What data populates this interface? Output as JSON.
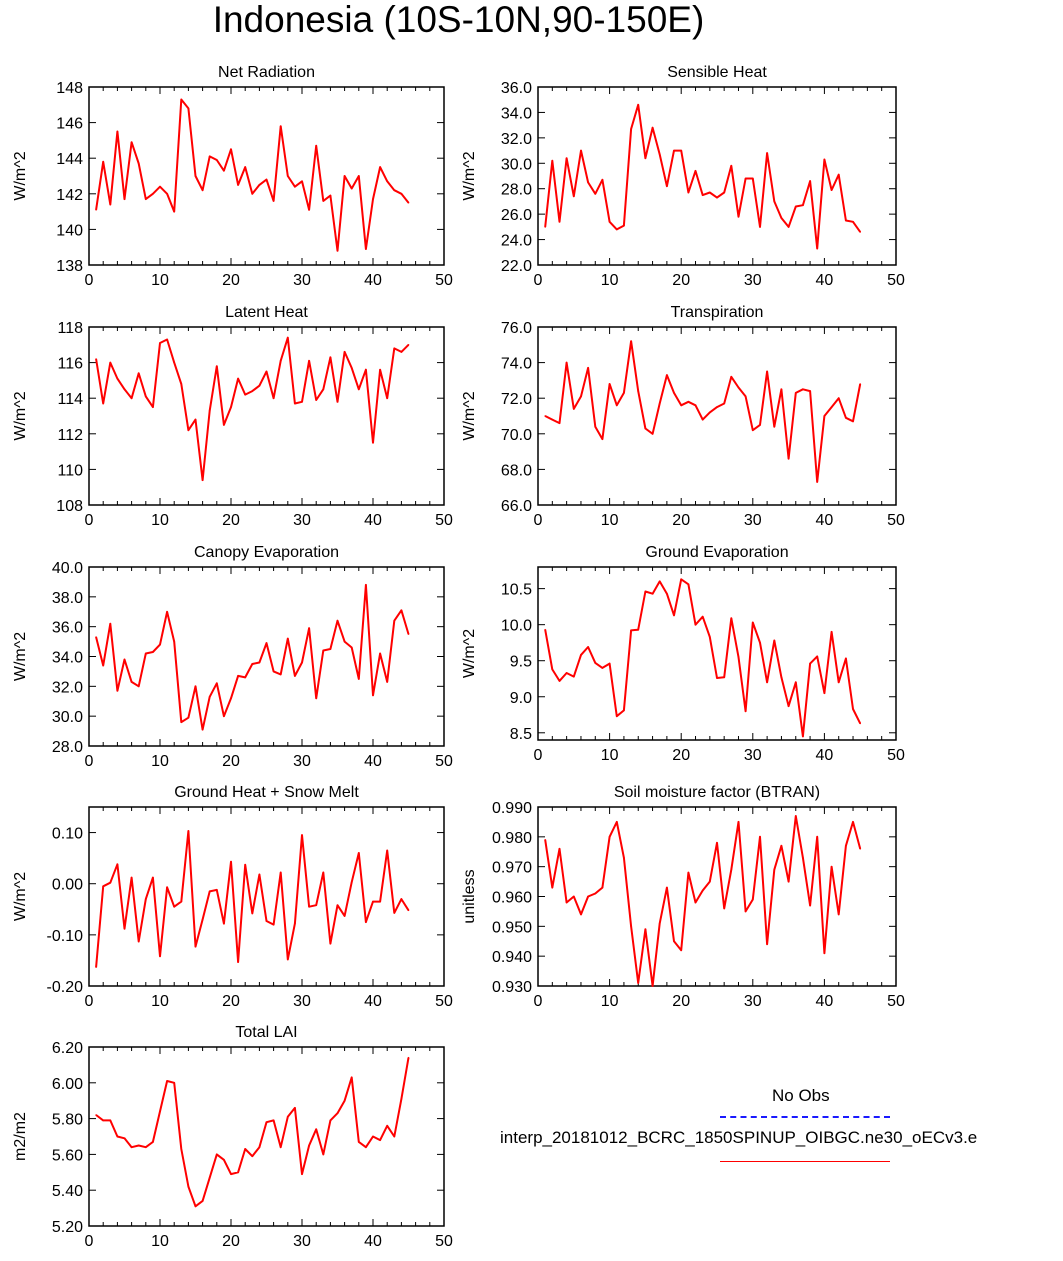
{
  "title": "Indonesia (10S-10N,90-150E)",
  "colors": {
    "line": "#ff0000",
    "obs": "#1a1aff",
    "axis": "#000000"
  },
  "legend": {
    "obs_label": "No Obs",
    "case_label": "interp_20181012_BCRC_1850SPINUP_OIBGC.ne30_oECv3.e"
  },
  "chart_data": [
    {
      "type": "line",
      "title": "Net Radiation",
      "ylabel": "W/m^2",
      "xlabel": "",
      "xlim": [
        0,
        50
      ],
      "ylim": [
        138,
        148
      ],
      "grid": false,
      "xticks": [
        "0",
        "10",
        "20",
        "30",
        "40",
        "50"
      ],
      "yticks": [
        "138",
        "140",
        "142",
        "144",
        "146",
        "148"
      ],
      "series": [
        {
          "x": [
            1,
            2,
            3,
            4,
            5,
            6,
            7,
            8,
            9,
            10,
            11,
            12,
            13,
            14,
            15,
            16,
            17,
            18,
            19,
            20,
            21,
            22,
            23,
            24,
            25,
            26,
            27,
            28,
            29,
            30,
            31,
            32,
            33,
            34,
            35,
            36,
            37,
            38,
            39,
            40,
            41,
            42,
            43,
            44,
            45
          ],
          "values": [
            141.1,
            143.8,
            141.4,
            145.5,
            141.7,
            144.9,
            143.7,
            141.7,
            142.0,
            142.4,
            142.0,
            141.0,
            147.3,
            146.8,
            143.0,
            142.2,
            144.1,
            143.9,
            143.3,
            144.5,
            142.5,
            143.5,
            142.0,
            142.5,
            142.8,
            141.6,
            145.8,
            143.0,
            142.4,
            142.7,
            141.1,
            144.7,
            141.6,
            141.9,
            138.8,
            143.0,
            142.3,
            143.0,
            138.9,
            141.7,
            143.5,
            142.7,
            142.2,
            142.0,
            141.5
          ]
        }
      ]
    },
    {
      "type": "line",
      "title": "Sensible Heat",
      "ylabel": "W/m^2",
      "xlabel": "",
      "xlim": [
        0,
        50
      ],
      "ylim": [
        22.0,
        36.0
      ],
      "grid": false,
      "xticks": [
        "0",
        "10",
        "20",
        "30",
        "40",
        "50"
      ],
      "yticks": [
        "22.0",
        "24.0",
        "26.0",
        "28.0",
        "30.0",
        "32.0",
        "34.0",
        "36.0"
      ],
      "series": [
        {
          "x": [
            1,
            2,
            3,
            4,
            5,
            6,
            7,
            8,
            9,
            10,
            11,
            12,
            13,
            14,
            15,
            16,
            17,
            18,
            19,
            20,
            21,
            22,
            23,
            24,
            25,
            26,
            27,
            28,
            29,
            30,
            31,
            32,
            33,
            34,
            35,
            36,
            37,
            38,
            39,
            40,
            41,
            42,
            43,
            44,
            45
          ],
          "values": [
            25.0,
            30.2,
            25.4,
            30.4,
            27.4,
            31.0,
            28.5,
            27.6,
            28.7,
            25.4,
            24.8,
            25.1,
            32.7,
            34.6,
            30.4,
            32.8,
            30.7,
            28.2,
            31.0,
            31.0,
            27.7,
            29.4,
            27.5,
            27.7,
            27.3,
            27.7,
            29.8,
            25.8,
            28.8,
            28.8,
            25.0,
            30.8,
            27.0,
            25.7,
            25.0,
            26.6,
            26.7,
            28.6,
            23.3,
            30.3,
            27.9,
            29.1,
            25.5,
            25.4,
            24.6
          ]
        }
      ]
    },
    {
      "type": "line",
      "title": "Latent Heat",
      "ylabel": "W/m^2",
      "xlabel": "",
      "xlim": [
        0,
        50
      ],
      "ylim": [
        108,
        118
      ],
      "grid": false,
      "xticks": [
        "0",
        "10",
        "20",
        "30",
        "40",
        "50"
      ],
      "yticks": [
        "108",
        "110",
        "112",
        "114",
        "116",
        "118"
      ],
      "series": [
        {
          "x": [
            1,
            2,
            3,
            4,
            5,
            6,
            7,
            8,
            9,
            10,
            11,
            12,
            13,
            14,
            15,
            16,
            17,
            18,
            19,
            20,
            21,
            22,
            23,
            24,
            25,
            26,
            27,
            28,
            29,
            30,
            31,
            32,
            33,
            34,
            35,
            36,
            37,
            38,
            39,
            40,
            41,
            42,
            43,
            44,
            45
          ],
          "values": [
            116.2,
            113.7,
            116.0,
            115.1,
            114.5,
            114.0,
            115.4,
            114.1,
            113.5,
            117.1,
            117.3,
            116.0,
            114.8,
            112.2,
            112.8,
            109.4,
            113.3,
            115.8,
            112.5,
            113.5,
            115.1,
            114.2,
            114.4,
            114.7,
            115.5,
            114.0,
            116.1,
            117.4,
            113.7,
            113.8,
            116.1,
            113.9,
            114.5,
            116.3,
            113.8,
            116.6,
            115.7,
            114.5,
            115.6,
            111.5,
            115.6,
            114.0,
            116.8,
            116.6,
            117.0
          ]
        }
      ]
    },
    {
      "type": "line",
      "title": "Transpiration",
      "ylabel": "W/m^2",
      "xlabel": "",
      "xlim": [
        0,
        50
      ],
      "ylim": [
        66.0,
        76.0
      ],
      "grid": false,
      "xticks": [
        "0",
        "10",
        "20",
        "30",
        "40",
        "50"
      ],
      "yticks": [
        "66.0",
        "68.0",
        "70.0",
        "72.0",
        "74.0",
        "76.0"
      ],
      "series": [
        {
          "x": [
            1,
            2,
            3,
            4,
            5,
            6,
            7,
            8,
            9,
            10,
            11,
            12,
            13,
            14,
            15,
            16,
            17,
            18,
            19,
            20,
            21,
            22,
            23,
            24,
            25,
            26,
            27,
            28,
            29,
            30,
            31,
            32,
            33,
            34,
            35,
            36,
            37,
            38,
            39,
            40,
            41,
            42,
            43,
            44,
            45
          ],
          "values": [
            71.0,
            70.8,
            70.6,
            74.0,
            71.4,
            72.1,
            73.7,
            70.4,
            69.7,
            72.8,
            71.6,
            72.3,
            75.2,
            72.4,
            70.3,
            70.0,
            71.7,
            73.3,
            72.3,
            71.6,
            71.8,
            71.6,
            70.8,
            71.2,
            71.5,
            71.7,
            73.2,
            72.6,
            72.1,
            70.2,
            70.5,
            73.5,
            70.4,
            72.5,
            68.6,
            72.3,
            72.5,
            72.4,
            67.3,
            71.0,
            71.5,
            72.0,
            70.9,
            70.7,
            72.8
          ]
        }
      ]
    },
    {
      "type": "line",
      "title": "Canopy Evaporation",
      "ylabel": "W/m^2",
      "xlabel": "",
      "xlim": [
        0,
        50
      ],
      "ylim": [
        28.0,
        40.0
      ],
      "grid": false,
      "xticks": [
        "0",
        "10",
        "20",
        "30",
        "40",
        "50"
      ],
      "yticks": [
        "28.0",
        "30.0",
        "32.0",
        "34.0",
        "36.0",
        "38.0",
        "40.0"
      ],
      "series": [
        {
          "x": [
            1,
            2,
            3,
            4,
            5,
            6,
            7,
            8,
            9,
            10,
            11,
            12,
            13,
            14,
            15,
            16,
            17,
            18,
            19,
            20,
            21,
            22,
            23,
            24,
            25,
            26,
            27,
            28,
            29,
            30,
            31,
            32,
            33,
            34,
            35,
            36,
            37,
            38,
            39,
            40,
            41,
            42,
            43,
            44,
            45
          ],
          "values": [
            35.3,
            33.4,
            36.2,
            31.7,
            33.8,
            32.3,
            32.0,
            34.2,
            34.3,
            34.8,
            37.0,
            35.0,
            29.6,
            29.9,
            32.0,
            29.1,
            31.3,
            32.2,
            30.0,
            31.2,
            32.7,
            32.6,
            33.5,
            33.6,
            34.9,
            33.0,
            32.8,
            35.2,
            32.7,
            33.6,
            35.9,
            31.2,
            34.4,
            34.5,
            36.4,
            35.0,
            34.6,
            32.5,
            38.8,
            31.4,
            34.2,
            32.3,
            36.4,
            37.1,
            35.5
          ]
        }
      ]
    },
    {
      "type": "line",
      "title": "Ground Evaporation",
      "ylabel": "W/m^2",
      "xlabel": "",
      "xlim": [
        0,
        50
      ],
      "ylim": [
        8.4,
        10.8
      ],
      "grid": false,
      "xticks": [
        "0",
        "10",
        "20",
        "30",
        "40",
        "50"
      ],
      "yticks": [
        "8.5",
        "9.0",
        "9.5",
        "10.0",
        "10.5"
      ],
      "series": [
        {
          "x": [
            1,
            2,
            3,
            4,
            5,
            6,
            7,
            8,
            9,
            10,
            11,
            12,
            13,
            14,
            15,
            16,
            17,
            18,
            19,
            20,
            21,
            22,
            23,
            24,
            25,
            26,
            27,
            28,
            29,
            30,
            31,
            32,
            33,
            34,
            35,
            36,
            37,
            38,
            39,
            40,
            41,
            42,
            43,
            44,
            45
          ],
          "values": [
            9.93,
            9.38,
            9.22,
            9.33,
            9.28,
            9.58,
            9.69,
            9.47,
            9.4,
            9.46,
            8.73,
            8.81,
            9.92,
            9.93,
            10.46,
            10.43,
            10.6,
            10.43,
            10.13,
            10.63,
            10.56,
            10.0,
            10.11,
            9.83,
            9.26,
            9.27,
            10.09,
            9.55,
            8.8,
            10.03,
            9.75,
            9.2,
            9.78,
            9.27,
            8.87,
            9.2,
            8.45,
            9.46,
            9.56,
            9.05,
            9.9,
            9.2,
            9.53,
            8.83,
            8.63
          ]
        }
      ]
    },
    {
      "type": "line",
      "title": "Ground Heat + Snow Melt",
      "ylabel": "W/m^2",
      "xlabel": "",
      "xlim": [
        0,
        50
      ],
      "ylim": [
        -0.2,
        0.15
      ],
      "grid": false,
      "xticks": [
        "0",
        "10",
        "20",
        "30",
        "40",
        "50"
      ],
      "yticks": [
        "-0.20",
        "-0.10",
        "0.00",
        "0.10"
      ],
      "series": [
        {
          "x": [
            1,
            2,
            3,
            4,
            5,
            6,
            7,
            8,
            9,
            10,
            11,
            12,
            13,
            14,
            15,
            16,
            17,
            18,
            19,
            20,
            21,
            22,
            23,
            24,
            25,
            26,
            27,
            28,
            29,
            30,
            31,
            32,
            33,
            34,
            35,
            36,
            37,
            38,
            39,
            40,
            41,
            42,
            43,
            44,
            45
          ],
          "values": [
            -0.163,
            -0.005,
            0.002,
            0.038,
            -0.088,
            0.012,
            -0.113,
            -0.03,
            0.012,
            -0.142,
            -0.007,
            -0.045,
            -0.035,
            0.103,
            -0.123,
            -0.07,
            -0.015,
            -0.012,
            -0.078,
            0.043,
            -0.153,
            0.037,
            -0.058,
            0.018,
            -0.073,
            -0.08,
            0.022,
            -0.148,
            -0.078,
            0.095,
            -0.045,
            -0.042,
            0.022,
            -0.117,
            -0.042,
            -0.063,
            0.003,
            0.06,
            -0.075,
            -0.035,
            -0.035,
            0.065,
            -0.057,
            -0.03,
            -0.052
          ]
        }
      ]
    },
    {
      "type": "line",
      "title": "Soil moisture factor (BTRAN)",
      "ylabel": "unitless",
      "xlabel": "",
      "xlim": [
        0,
        50
      ],
      "ylim": [
        0.93,
        0.99
      ],
      "grid": false,
      "xticks": [
        "0",
        "10",
        "20",
        "30",
        "40",
        "50"
      ],
      "yticks": [
        "0.930",
        "0.940",
        "0.950",
        "0.960",
        "0.970",
        "0.980",
        "0.990"
      ],
      "series": [
        {
          "x": [
            1,
            2,
            3,
            4,
            5,
            6,
            7,
            8,
            9,
            10,
            11,
            12,
            13,
            14,
            15,
            16,
            17,
            18,
            19,
            20,
            21,
            22,
            23,
            24,
            25,
            26,
            27,
            28,
            29,
            30,
            31,
            32,
            33,
            34,
            35,
            36,
            37,
            38,
            39,
            40,
            41,
            42,
            43,
            44,
            45
          ],
          "values": [
            0.979,
            0.963,
            0.976,
            0.958,
            0.96,
            0.954,
            0.96,
            0.961,
            0.963,
            0.98,
            0.985,
            0.973,
            0.95,
            0.931,
            0.949,
            0.93,
            0.951,
            0.963,
            0.945,
            0.942,
            0.968,
            0.958,
            0.962,
            0.965,
            0.978,
            0.956,
            0.969,
            0.985,
            0.955,
            0.959,
            0.98,
            0.944,
            0.969,
            0.977,
            0.965,
            0.987,
            0.973,
            0.957,
            0.98,
            0.941,
            0.97,
            0.954,
            0.977,
            0.985,
            0.976
          ]
        }
      ]
    },
    {
      "type": "line",
      "title": "Total LAI",
      "ylabel": "m2/m2",
      "xlabel": "",
      "xlim": [
        0,
        50
      ],
      "ylim": [
        5.2,
        6.2
      ],
      "grid": false,
      "xticks": [
        "0",
        "10",
        "20",
        "30",
        "40",
        "50"
      ],
      "yticks": [
        "5.20",
        "5.40",
        "5.60",
        "5.80",
        "6.00",
        "6.20"
      ],
      "series": [
        {
          "x": [
            1,
            2,
            3,
            4,
            5,
            6,
            7,
            8,
            9,
            10,
            11,
            12,
            13,
            14,
            15,
            16,
            17,
            18,
            19,
            20,
            21,
            22,
            23,
            24,
            25,
            26,
            27,
            28,
            29,
            30,
            31,
            32,
            33,
            34,
            35,
            36,
            37,
            38,
            39,
            40,
            41,
            42,
            43,
            44,
            45
          ],
          "values": [
            5.82,
            5.79,
            5.79,
            5.7,
            5.69,
            5.64,
            5.65,
            5.64,
            5.67,
            5.84,
            6.01,
            6.0,
            5.63,
            5.42,
            5.31,
            5.34,
            5.47,
            5.6,
            5.57,
            5.49,
            5.5,
            5.63,
            5.59,
            5.64,
            5.78,
            5.79,
            5.64,
            5.81,
            5.86,
            5.49,
            5.65,
            5.74,
            5.6,
            5.79,
            5.83,
            5.9,
            6.03,
            5.67,
            5.64,
            5.7,
            5.68,
            5.76,
            5.7,
            5.91,
            6.14
          ]
        }
      ]
    }
  ]
}
